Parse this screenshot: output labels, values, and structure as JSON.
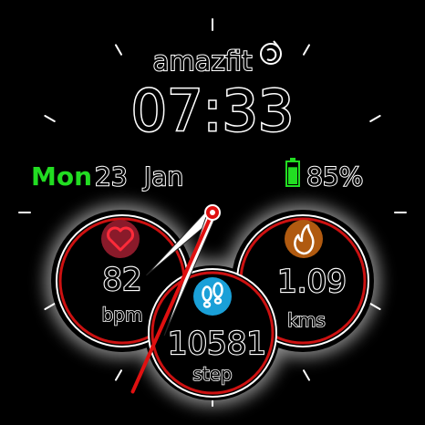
{
  "brand": "amazfit",
  "time": "07:33",
  "date": {
    "weekday": "Mon",
    "day": "23",
    "month": "Jan"
  },
  "battery": {
    "percent_label": "85%",
    "level": 0.85,
    "color": "#22dd22"
  },
  "widgets": {
    "heart_rate": {
      "value": "82",
      "unit": "bpm",
      "icon": "heart-icon",
      "icon_bg": "#8a1a2a",
      "icon_color": "#ff2b3a"
    },
    "distance": {
      "value": "1.09",
      "unit": "kms",
      "icon": "flame-icon",
      "icon_bg": "#b05a10",
      "icon_color": "#ffffff"
    },
    "steps": {
      "value": "10581",
      "unit": "step",
      "icon": "footprints-icon",
      "icon_bg": "#1aa0d8",
      "icon_color": "#ffffff"
    }
  },
  "colors": {
    "accent_green": "#22dd22",
    "ring_red": "#cc1111",
    "text_outline": "#ffffff"
  },
  "hands": {
    "hour": 7,
    "minute": 33,
    "second": 34
  }
}
